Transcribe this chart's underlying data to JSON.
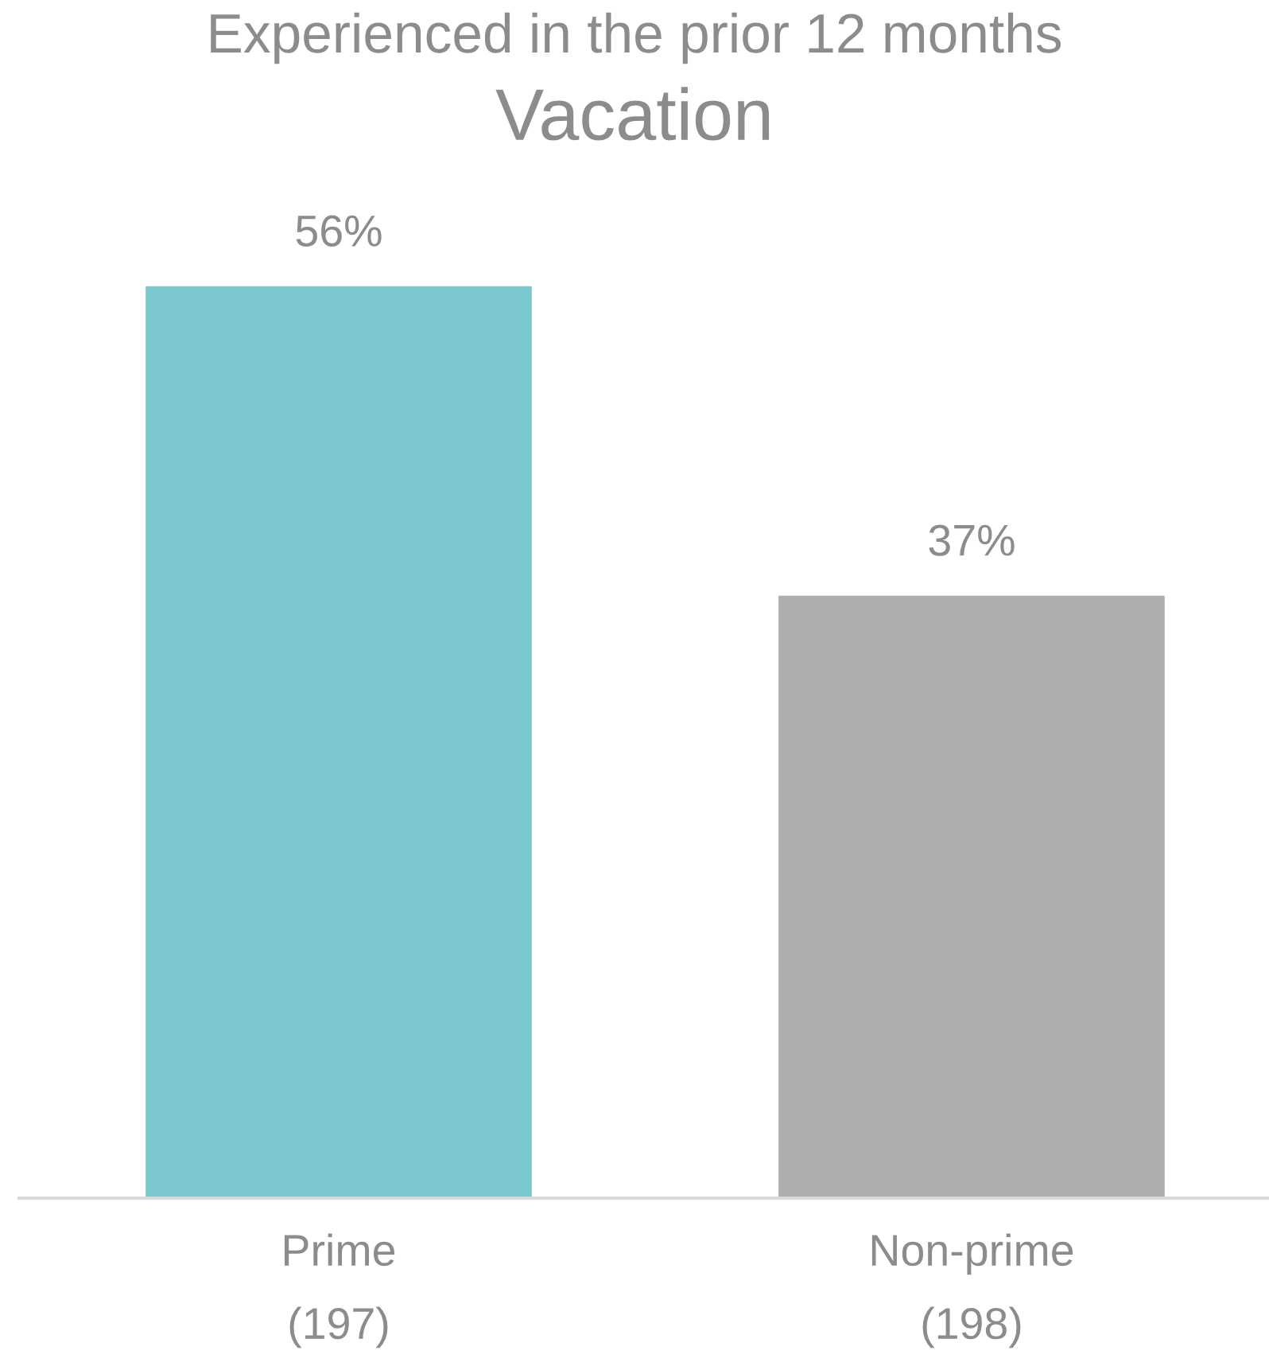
{
  "chart_data": {
    "type": "bar",
    "subtitle": "Experienced in the prior 12 months",
    "title": "Vacation",
    "categories": [
      "Prime\n(197)",
      "Non-prime\n(198)"
    ],
    "values": [
      56,
      37
    ],
    "colors": [
      "#7ac7d0",
      "#adadad"
    ],
    "value_labels": [
      "56%",
      "37%"
    ],
    "grid": false,
    "legend": false
  }
}
